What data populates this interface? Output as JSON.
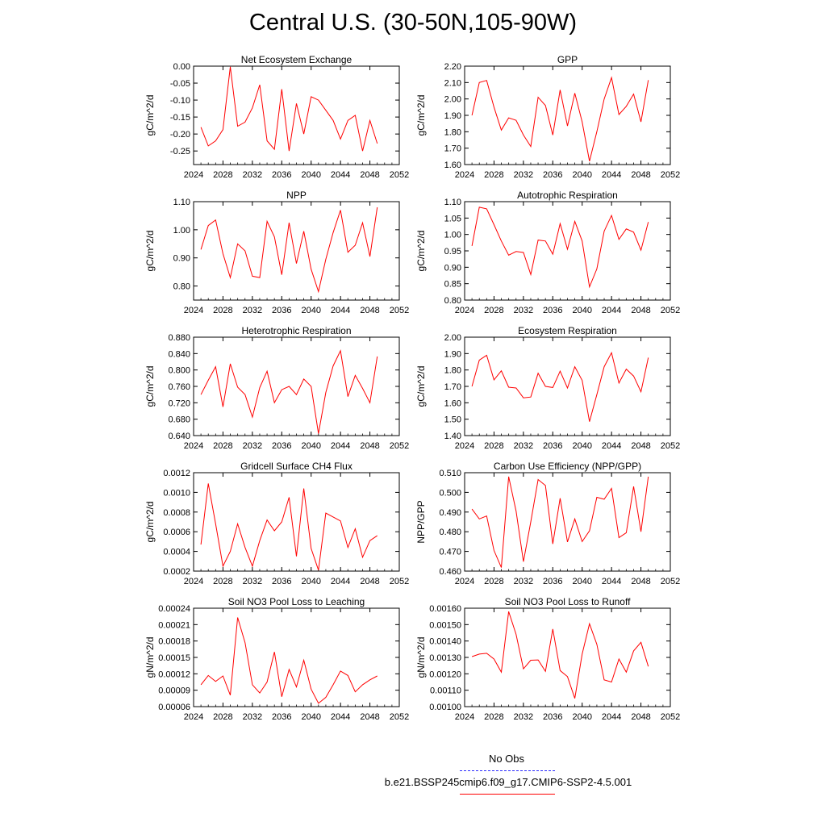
{
  "figure": {
    "title": "Central U.S. (30-50N,105-90W)",
    "legend": {
      "obs_label": "No Obs",
      "run_label": "b.e21.BSSP245cmip6.f09_g17.CMIP6-SSP2-4.5.001",
      "obs_color": "#3333ff",
      "run_color": "#ff0000"
    }
  },
  "chart_data": [
    {
      "type": "line",
      "title": "Net Ecosystem Exchange",
      "ylabel": "gC/m^2/d",
      "xlim": [
        2024,
        2052
      ],
      "xticks": [
        "2024",
        "2028",
        "2032",
        "2036",
        "2040",
        "2044",
        "2048",
        "2052"
      ],
      "ylim": [
        -0.29,
        0.0
      ],
      "yticks": [
        "0.00",
        "-0.05",
        "-0.10",
        "-0.15",
        "-0.20",
        "-0.25"
      ],
      "ytick_values": [
        0.0,
        -0.05,
        -0.1,
        -0.15,
        -0.2,
        -0.25
      ],
      "x": [
        2025,
        2026,
        2027,
        2028,
        2029,
        2030,
        2031,
        2032,
        2033,
        2034,
        2035,
        2036,
        2037,
        2038,
        2039,
        2040,
        2041,
        2042,
        2043,
        2044,
        2045,
        2046,
        2047,
        2048,
        2049
      ],
      "series": [
        {
          "values": [
            -0.18,
            -0.235,
            -0.22,
            -0.187,
            -0.002,
            -0.177,
            -0.165,
            -0.123,
            -0.055,
            -0.22,
            -0.245,
            -0.068,
            -0.25,
            -0.11,
            -0.2,
            -0.09,
            -0.1,
            -0.13,
            -0.16,
            -0.215,
            -0.16,
            -0.145,
            -0.25,
            -0.16,
            -0.228
          ],
          "color": "#ff0000"
        }
      ]
    },
    {
      "type": "line",
      "title": "GPP",
      "ylabel": "gC/m^2/d",
      "xlim": [
        2024,
        2052
      ],
      "xticks": [
        "2024",
        "2028",
        "2032",
        "2036",
        "2040",
        "2044",
        "2048",
        "2052"
      ],
      "ylim": [
        1.6,
        2.2
      ],
      "yticks": [
        "2.20",
        "2.10",
        "2.00",
        "1.90",
        "1.80",
        "1.70",
        "1.60"
      ],
      "ytick_values": [
        2.2,
        2.1,
        2.0,
        1.9,
        1.8,
        1.7,
        1.6
      ],
      "x": [
        2025,
        2026,
        2027,
        2028,
        2029,
        2030,
        2031,
        2032,
        2033,
        2034,
        2035,
        2036,
        2037,
        2038,
        2039,
        2040,
        2041,
        2042,
        2043,
        2044,
        2045,
        2046,
        2047,
        2048,
        2049
      ],
      "series": [
        {
          "values": [
            1.9,
            2.1,
            2.113,
            1.95,
            1.81,
            1.885,
            1.87,
            1.78,
            1.71,
            2.01,
            1.96,
            1.78,
            2.055,
            1.835,
            2.035,
            1.86,
            1.62,
            1.8,
            2.0,
            2.13,
            1.905,
            1.955,
            2.03,
            1.86,
            2.115
          ],
          "color": "#ff0000"
        }
      ]
    },
    {
      "type": "line",
      "title": "NPP",
      "ylabel": "gC/m^2/d",
      "xlim": [
        2024,
        2052
      ],
      "xticks": [
        "2024",
        "2028",
        "2032",
        "2036",
        "2040",
        "2044",
        "2048",
        "2052"
      ],
      "ylim": [
        0.75,
        1.1
      ],
      "yticks": [
        "1.10",
        "1.00",
        "0.90",
        "0.80"
      ],
      "ytick_values": [
        1.1,
        1.0,
        0.9,
        0.8
      ],
      "x": [
        2025,
        2026,
        2027,
        2028,
        2029,
        2030,
        2031,
        2032,
        2033,
        2034,
        2035,
        2036,
        2037,
        2038,
        2039,
        2040,
        2041,
        2042,
        2043,
        2044,
        2045,
        2046,
        2047,
        2048,
        2049
      ],
      "series": [
        {
          "values": [
            0.93,
            1.015,
            1.035,
            0.915,
            0.83,
            0.95,
            0.925,
            0.835,
            0.83,
            1.03,
            0.975,
            0.84,
            1.025,
            0.88,
            0.995,
            0.86,
            0.78,
            0.895,
            0.99,
            1.07,
            0.92,
            0.945,
            1.025,
            0.905,
            1.08
          ],
          "color": "#ff0000"
        }
      ]
    },
    {
      "type": "line",
      "title": "Autotrophic Respiration",
      "ylabel": "gC/m^2/d",
      "xlim": [
        2024,
        2052
      ],
      "xticks": [
        "2024",
        "2028",
        "2032",
        "2036",
        "2040",
        "2044",
        "2048",
        "2052"
      ],
      "ylim": [
        0.8,
        1.1
      ],
      "yticks": [
        "1.10",
        "1.05",
        "1.00",
        "0.95",
        "0.90",
        "0.85",
        "0.80"
      ],
      "ytick_values": [
        1.1,
        1.05,
        1.0,
        0.95,
        0.9,
        0.85,
        0.8
      ],
      "x": [
        2025,
        2026,
        2027,
        2028,
        2029,
        2030,
        2031,
        2032,
        2033,
        2034,
        2035,
        2036,
        2037,
        2038,
        2039,
        2040,
        2041,
        2042,
        2043,
        2044,
        2045,
        2046,
        2047,
        2048,
        2049
      ],
      "series": [
        {
          "values": [
            0.965,
            1.083,
            1.078,
            1.03,
            0.98,
            0.937,
            0.948,
            0.945,
            0.878,
            0.983,
            0.98,
            0.94,
            1.033,
            0.955,
            1.04,
            0.98,
            0.84,
            0.895,
            1.01,
            1.058,
            0.985,
            1.017,
            1.007,
            0.952,
            1.038
          ],
          "color": "#ff0000"
        }
      ]
    },
    {
      "type": "line",
      "title": "Heterotrophic Respiration",
      "ylabel": "gC/m^2/d",
      "xlim": [
        2024,
        2052
      ],
      "xticks": [
        "2024",
        "2028",
        "2032",
        "2036",
        "2040",
        "2044",
        "2048",
        "2052"
      ],
      "ylim": [
        0.64,
        0.88
      ],
      "yticks": [
        "0.880",
        "0.840",
        "0.800",
        "0.760",
        "0.720",
        "0.680",
        "0.640"
      ],
      "ytick_values": [
        0.88,
        0.84,
        0.8,
        0.76,
        0.72,
        0.68,
        0.64
      ],
      "x": [
        2025,
        2026,
        2027,
        2028,
        2029,
        2030,
        2031,
        2032,
        2033,
        2034,
        2035,
        2036,
        2037,
        2038,
        2039,
        2040,
        2041,
        2042,
        2043,
        2044,
        2045,
        2046,
        2047,
        2048,
        2049
      ],
      "series": [
        {
          "values": [
            0.74,
            0.775,
            0.808,
            0.71,
            0.815,
            0.758,
            0.74,
            0.685,
            0.757,
            0.797,
            0.72,
            0.752,
            0.76,
            0.74,
            0.778,
            0.76,
            0.645,
            0.745,
            0.81,
            0.847,
            0.735,
            0.787,
            0.755,
            0.72,
            0.833
          ],
          "color": "#ff0000"
        }
      ]
    },
    {
      "type": "line",
      "title": "Ecosystem Respiration",
      "ylabel": "gC/m^2/d",
      "xlim": [
        2024,
        2052
      ],
      "xticks": [
        "2024",
        "2028",
        "2032",
        "2036",
        "2040",
        "2044",
        "2048",
        "2052"
      ],
      "ylim": [
        1.4,
        2.0
      ],
      "yticks": [
        "2.00",
        "1.90",
        "1.80",
        "1.70",
        "1.60",
        "1.50",
        "1.40"
      ],
      "ytick_values": [
        2.0,
        1.9,
        1.8,
        1.7,
        1.6,
        1.5,
        1.4
      ],
      "x": [
        2025,
        2026,
        2027,
        2028,
        2029,
        2030,
        2031,
        2032,
        2033,
        2034,
        2035,
        2036,
        2037,
        2038,
        2039,
        2040,
        2041,
        2042,
        2043,
        2044,
        2045,
        2046,
        2047,
        2048,
        2049
      ],
      "series": [
        {
          "values": [
            1.7,
            1.86,
            1.89,
            1.74,
            1.795,
            1.695,
            1.69,
            1.63,
            1.635,
            1.78,
            1.7,
            1.693,
            1.793,
            1.69,
            1.82,
            1.737,
            1.485,
            1.65,
            1.82,
            1.905,
            1.72,
            1.805,
            1.763,
            1.667,
            1.875
          ],
          "color": "#ff0000"
        }
      ]
    },
    {
      "type": "line",
      "title": "Gridcell Surface CH4 Flux",
      "ylabel": "gC/m^2/d",
      "xlim": [
        2024,
        2052
      ],
      "xticks": [
        "2024",
        "2028",
        "2032",
        "2036",
        "2040",
        "2044",
        "2048",
        "2052"
      ],
      "ylim": [
        0.0002,
        0.0012
      ],
      "yticks": [
        "0.0012",
        "0.0010",
        "0.0008",
        "0.0006",
        "0.0004",
        "0.0002"
      ],
      "ytick_values": [
        0.0012,
        0.001,
        0.0008,
        0.0006,
        0.0004,
        0.0002
      ],
      "x": [
        2025,
        2026,
        2027,
        2028,
        2029,
        2030,
        2031,
        2032,
        2033,
        2034,
        2035,
        2036,
        2037,
        2038,
        2039,
        2040,
        2041,
        2042,
        2043,
        2044,
        2045,
        2046,
        2047,
        2048,
        2049
      ],
      "series": [
        {
          "values": [
            0.00047,
            0.00109,
            0.00068,
            0.00025,
            0.0004,
            0.00068,
            0.00044,
            0.00025,
            0.00051,
            0.00072,
            0.00061,
            0.0007,
            0.00095,
            0.00035,
            0.00104,
            0.00043,
            0.00021,
            0.00079,
            0.00075,
            0.00071,
            0.00044,
            0.00063,
            0.00034,
            0.00051,
            0.00056
          ],
          "color": "#ff0000"
        }
      ]
    },
    {
      "type": "line",
      "title": "Carbon Use Efficiency (NPP/GPP)",
      "ylabel": "NPP/GPP",
      "xlim": [
        2024,
        2052
      ],
      "xticks": [
        "2024",
        "2028",
        "2032",
        "2036",
        "2040",
        "2044",
        "2048",
        "2052"
      ],
      "ylim": [
        0.46,
        0.51
      ],
      "yticks": [
        "0.510",
        "0.500",
        "0.490",
        "0.480",
        "0.470",
        "0.460"
      ],
      "ytick_values": [
        0.51,
        0.5,
        0.49,
        0.48,
        0.47,
        0.46
      ],
      "x": [
        2025,
        2026,
        2027,
        2028,
        2029,
        2030,
        2031,
        2032,
        2033,
        2034,
        2035,
        2036,
        2037,
        2038,
        2039,
        2040,
        2041,
        2042,
        2043,
        2044,
        2045,
        2046,
        2047,
        2048,
        2049
      ],
      "series": [
        {
          "values": [
            0.4915,
            0.4865,
            0.488,
            0.4705,
            0.4618,
            0.508,
            0.4905,
            0.4648,
            0.485,
            0.5065,
            0.5035,
            0.4738,
            0.497,
            0.4748,
            0.4865,
            0.475,
            0.4805,
            0.4975,
            0.4965,
            0.502,
            0.477,
            0.4795,
            0.503,
            0.48,
            0.508
          ],
          "color": "#ff0000"
        }
      ]
    },
    {
      "type": "line",
      "title": "Soil NO3 Pool Loss to Leaching",
      "ylabel": "gN/m^2/d",
      "xlim": [
        2024,
        2052
      ],
      "xticks": [
        "2024",
        "2028",
        "2032",
        "2036",
        "2040",
        "2044",
        "2048",
        "2052"
      ],
      "ylim": [
        6e-05,
        0.00024
      ],
      "yticks": [
        "0.00024",
        "0.00021",
        "0.00018",
        "0.00015",
        "0.00012",
        "0.00009",
        "0.00006"
      ],
      "ytick_values": [
        0.00024,
        0.00021,
        0.00018,
        0.00015,
        0.00012,
        9e-05,
        6e-05
      ],
      "x": [
        2025,
        2026,
        2027,
        2028,
        2029,
        2030,
        2031,
        2032,
        2033,
        2034,
        2035,
        2036,
        2037,
        2038,
        2039,
        2040,
        2041,
        2042,
        2043,
        2044,
        2045,
        2046,
        2047,
        2048,
        2049
      ],
      "series": [
        {
          "values": [
            0.0001,
            0.000117,
            0.000106,
            0.000116,
            8.1e-05,
            0.000223,
            0.000177,
            0.0001,
            8.5e-05,
            0.000105,
            0.00016,
            7.8e-05,
            0.000128,
            9.6e-05,
            0.000145,
            9.2e-05,
            6.6e-05,
            7.7e-05,
            0.0001,
            0.000125,
            0.000117,
            8.7e-05,
            0.0001,
            0.000109,
            0.000116
          ],
          "color": "#ff0000"
        }
      ]
    },
    {
      "type": "line",
      "title": "Soil NO3 Pool Loss to Runoff",
      "ylabel": "gN/m^2/d",
      "xlim": [
        2024,
        2052
      ],
      "xticks": [
        "2024",
        "2028",
        "2032",
        "2036",
        "2040",
        "2044",
        "2048",
        "2052"
      ],
      "ylim": [
        0.001,
        0.0016
      ],
      "yticks": [
        "0.00160",
        "0.00150",
        "0.00140",
        "0.00130",
        "0.00120",
        "0.00110",
        "0.00100"
      ],
      "ytick_values": [
        0.0016,
        0.0015,
        0.0014,
        0.0013,
        0.0012,
        0.0011,
        0.001
      ],
      "x": [
        2025,
        2026,
        2027,
        2028,
        2029,
        2030,
        2031,
        2032,
        2033,
        2034,
        2035,
        2036,
        2037,
        2038,
        2039,
        2040,
        2041,
        2042,
        2043,
        2044,
        2045,
        2046,
        2047,
        2048,
        2049
      ],
      "series": [
        {
          "values": [
            0.001305,
            0.00132,
            0.001325,
            0.00129,
            0.00121,
            0.00158,
            0.00144,
            0.00123,
            0.001283,
            0.001285,
            0.001215,
            0.001473,
            0.00122,
            0.001183,
            0.00105,
            0.00132,
            0.001505,
            0.00138,
            0.001163,
            0.00115,
            0.00129,
            0.00121,
            0.00134,
            0.001392,
            0.001245
          ],
          "color": "#ff0000"
        }
      ]
    }
  ]
}
